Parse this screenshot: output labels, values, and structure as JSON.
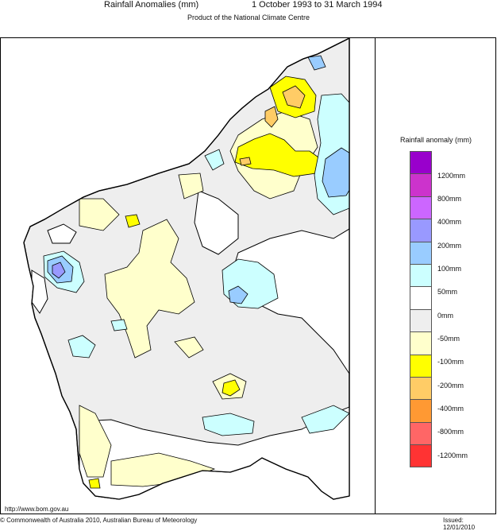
{
  "header": {
    "title": "Rainfall Anomalies (mm)",
    "period": "1 October 1993 to 31 March 1994",
    "product": "Product of the National Climate Centre"
  },
  "legend": {
    "title": "Rainfall anomaly (mm)",
    "colors": [
      "#9900cc",
      "#cc33cc",
      "#cc66ff",
      "#9999ff",
      "#99ccff",
      "#ccffff",
      "#ffffff",
      "#eeeeee",
      "#ffffcc",
      "#ffff00",
      "#ffcc66",
      "#ff9933",
      "#ff6666",
      "#ff3333"
    ],
    "labels": [
      "1200mm",
      "800mm",
      "400mm",
      "200mm",
      "100mm",
      "50mm",
      "0mm",
      "-50mm",
      "-100mm",
      "-200mm",
      "-400mm",
      "-800mm",
      "-1200mm"
    ]
  },
  "footer": {
    "url": "http://www.bom.gov.au",
    "copyright": "© Commonwealth of Australia 2010, Australian Bureau of Meteorology",
    "issued": "Issued: 12/01/2010"
  }
}
